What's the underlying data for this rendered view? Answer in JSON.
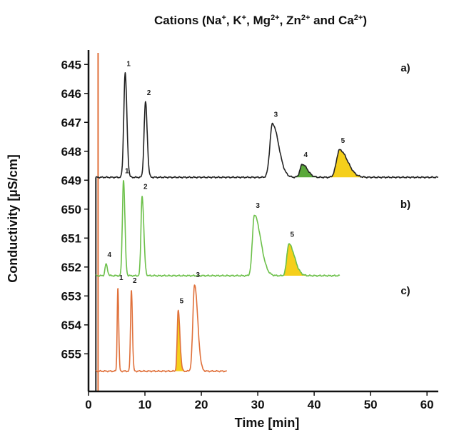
{
  "chart_data": {
    "type": "line",
    "title_parts": [
      {
        "t": "Cations (Na"
      },
      {
        "t": "+",
        "sup": true
      },
      {
        "t": ", K"
      },
      {
        "t": "+",
        "sup": true
      },
      {
        "t": ", Mg"
      },
      {
        "t": "2+",
        "sup": true
      },
      {
        "t": ", Zn"
      },
      {
        "t": "2+",
        "sup": true
      },
      {
        "t": " and Ca"
      },
      {
        "t": "2+",
        "sup": true
      },
      {
        "t": ")"
      }
    ],
    "xlabel": "Time [min]",
    "ylabel": "Conductivity [µS/cm]",
    "xlim": [
      0,
      62
    ],
    "xticks": [
      0,
      10,
      20,
      30,
      40,
      50,
      60
    ],
    "ylim": [
      644.5,
      656.3
    ],
    "yticks": [
      645,
      646,
      647,
      648,
      649,
      650,
      651,
      652,
      653,
      654,
      655
    ],
    "y_inverted": true,
    "grid": false,
    "colors": {
      "a": "#222222",
      "b": "#6cc04a",
      "c": "#e0703a",
      "fill_yellow": "#f5cf1b",
      "fill_green": "#5aa83a"
    },
    "injection_lines": [
      {
        "color": "#e0703a",
        "x": 1.7,
        "y_top": 644.6,
        "y_bottom": 656.3
      },
      {
        "color": "#222222",
        "x": 1.3,
        "y_top": 648.9,
        "y_bottom": 656.3
      }
    ],
    "series": [
      {
        "label": "a)",
        "color": "#222222",
        "baseline": 648.9,
        "x_start": 1.3,
        "x_end": 62,
        "peaks": [
          {
            "label": "1",
            "x": 6.5,
            "apex": 645.3,
            "sigma_l": 0.25,
            "sigma_r": 0.3
          },
          {
            "label": "2",
            "x": 10.1,
            "apex": 646.3,
            "sigma_l": 0.25,
            "sigma_r": 0.3
          },
          {
            "label": "3",
            "x": 32.6,
            "apex": 647.05,
            "sigma_l": 0.45,
            "sigma_r": 1.1
          },
          {
            "label": "4",
            "x": 37.9,
            "apex": 648.45,
            "sigma_l": 0.4,
            "sigma_r": 0.9,
            "fill": "#5aa83a"
          },
          {
            "label": "5",
            "x": 44.5,
            "apex": 647.95,
            "sigma_l": 0.55,
            "sigma_r": 1.4,
            "fill": "#f5cf1b"
          }
        ]
      },
      {
        "label": "b)",
        "color": "#6cc04a",
        "baseline": 652.3,
        "x_start": 1.3,
        "x_end": 44.5,
        "peaks": [
          {
            "label": "4",
            "x": 3.1,
            "apex": 651.9,
            "sigma_l": 0.18,
            "sigma_r": 0.25
          },
          {
            "label": "1",
            "x": 6.2,
            "apex": 649.0,
            "sigma_l": 0.2,
            "sigma_r": 0.25
          },
          {
            "label": "2",
            "x": 9.5,
            "apex": 649.55,
            "sigma_l": 0.2,
            "sigma_r": 0.3
          },
          {
            "label": "3",
            "x": 29.4,
            "apex": 650.2,
            "sigma_l": 0.35,
            "sigma_r": 1.1
          },
          {
            "label": "5",
            "x": 35.5,
            "apex": 651.2,
            "sigma_l": 0.35,
            "sigma_r": 1.0,
            "fill": "#f5cf1b"
          }
        ]
      },
      {
        "label": "c)",
        "color": "#e0703a",
        "baseline": 655.6,
        "x_start": 1.3,
        "x_end": 24.5,
        "peaks": [
          {
            "label": "1",
            "x": 5.2,
            "apex": 652.7,
            "sigma_l": 0.12,
            "sigma_r": 0.15
          },
          {
            "label": "2",
            "x": 7.6,
            "apex": 652.8,
            "sigma_l": 0.15,
            "sigma_r": 0.18
          },
          {
            "label": "5",
            "x": 15.9,
            "apex": 653.5,
            "sigma_l": 0.18,
            "sigma_r": 0.3,
            "fill": "#f5cf1b"
          },
          {
            "label": "3",
            "x": 18.8,
            "apex": 652.6,
            "sigma_l": 0.3,
            "sigma_r": 0.55
          }
        ]
      }
    ]
  }
}
